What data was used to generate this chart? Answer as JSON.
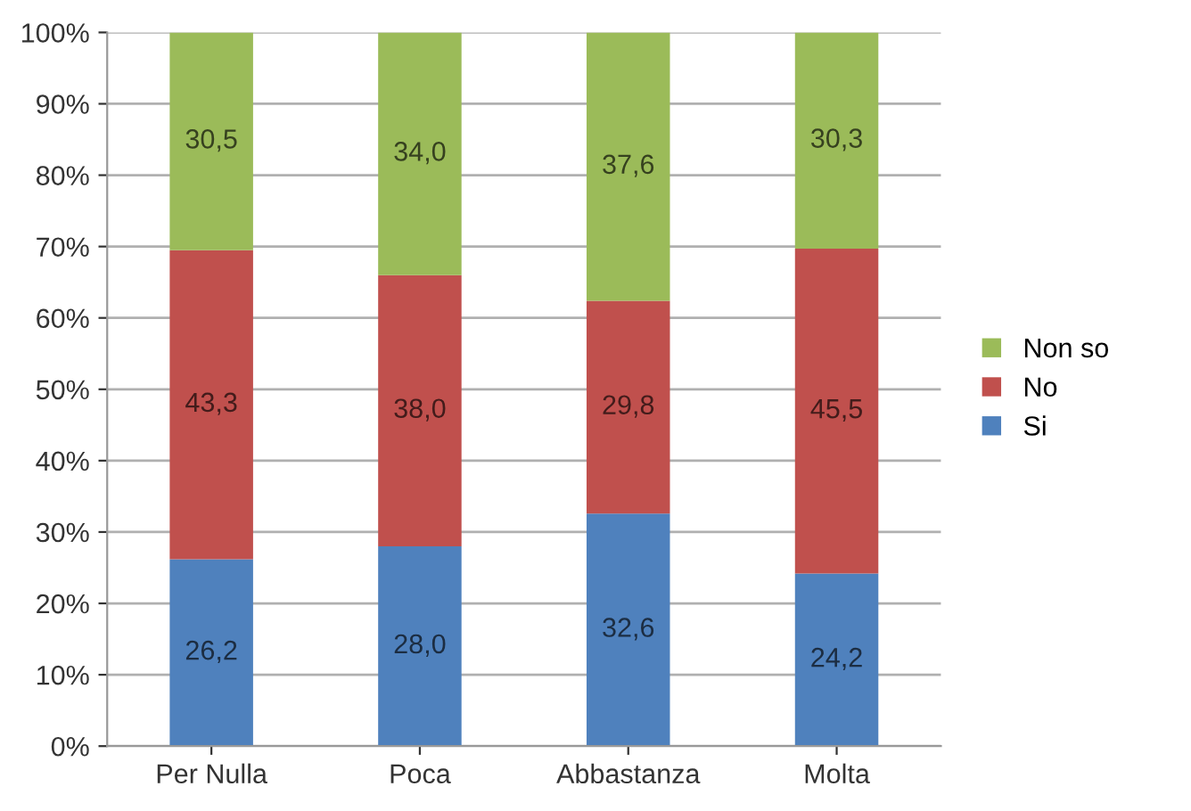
{
  "chart_data": {
    "type": "bar",
    "stacked": true,
    "categories": [
      "Per Nulla",
      "Poca",
      "Abbastanza",
      "Molta"
    ],
    "series": [
      {
        "name": "Si",
        "color": "#4f81bd",
        "values": [
          26.2,
          28.0,
          32.6,
          24.2
        ],
        "value_labels": [
          "26,2",
          "28,0",
          "32,6",
          "24,2"
        ]
      },
      {
        "name": "No",
        "color": "#c0504d",
        "values": [
          43.3,
          38.0,
          29.8,
          45.5
        ],
        "value_labels": [
          "43,3",
          "38,0",
          "29,8",
          "45,5"
        ]
      },
      {
        "name": "Non so",
        "color": "#9bbb59",
        "values": [
          30.5,
          34.0,
          37.6,
          30.3
        ],
        "value_labels": [
          "30,5",
          "34,0",
          "37,6",
          "30,3"
        ]
      }
    ],
    "ylim": [
      0,
      100
    ],
    "yticks": [
      {
        "value": 0,
        "label": "0%"
      },
      {
        "value": 10,
        "label": "10%"
      },
      {
        "value": 20,
        "label": "20%"
      },
      {
        "value": 30,
        "label": "30%"
      },
      {
        "value": 40,
        "label": "40%"
      },
      {
        "value": 50,
        "label": "50%"
      },
      {
        "value": 60,
        "label": "60%"
      },
      {
        "value": 70,
        "label": "70%"
      },
      {
        "value": 80,
        "label": "80%"
      },
      {
        "value": 90,
        "label": "90%"
      },
      {
        "value": 100,
        "label": "100%"
      }
    ],
    "grid": "y",
    "legend": "right"
  }
}
